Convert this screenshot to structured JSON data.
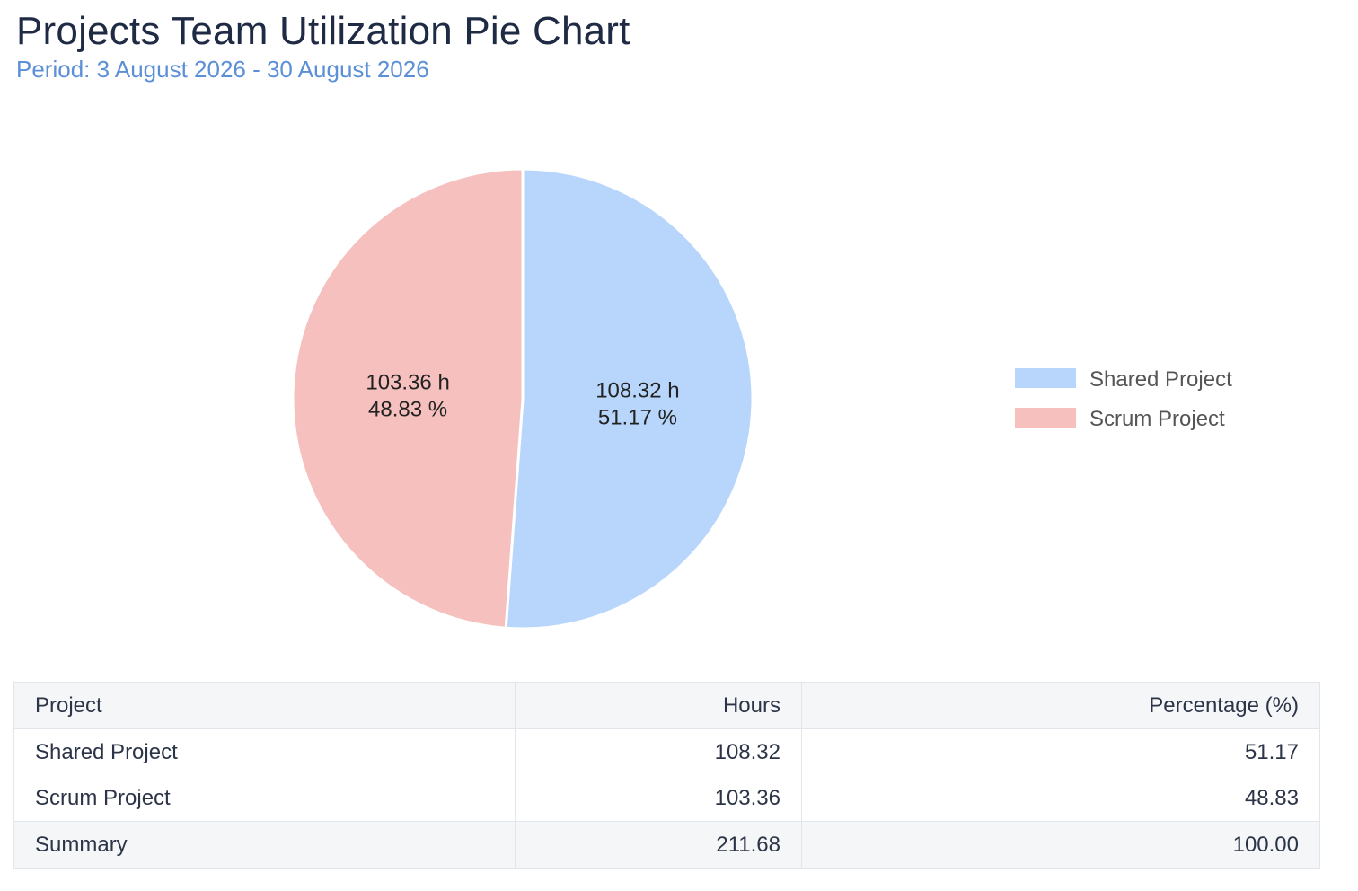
{
  "report": {
    "title": "Projects Team Utilization Pie Chart",
    "period": "Period: 3 August 2026 - 30 August 2026"
  },
  "chart_data": {
    "type": "pie",
    "title": "",
    "unit": "h",
    "legend_position": "right",
    "slices": [
      {
        "name": "Shared Project",
        "value": 108.32,
        "percent": 51.17,
        "label_value": "108.32 h",
        "label_percent": "51.17 %",
        "color": "#b8d6fb"
      },
      {
        "name": "Scrum Project",
        "value": 103.36,
        "percent": 48.83,
        "label_value": "103.36 h",
        "label_percent": "48.83 %",
        "color": "#f5c0bd"
      }
    ]
  },
  "table": {
    "headers": {
      "project": "Project",
      "hours": "Hours",
      "percentage": "Percentage (%)"
    },
    "rows": [
      {
        "project": "Shared Project",
        "hours": "108.32",
        "percentage": "51.17"
      },
      {
        "project": "Scrum Project",
        "hours": "103.36",
        "percentage": "48.83"
      }
    ],
    "summary": {
      "label": "Summary",
      "hours": "211.68",
      "percentage": "100.00"
    }
  }
}
